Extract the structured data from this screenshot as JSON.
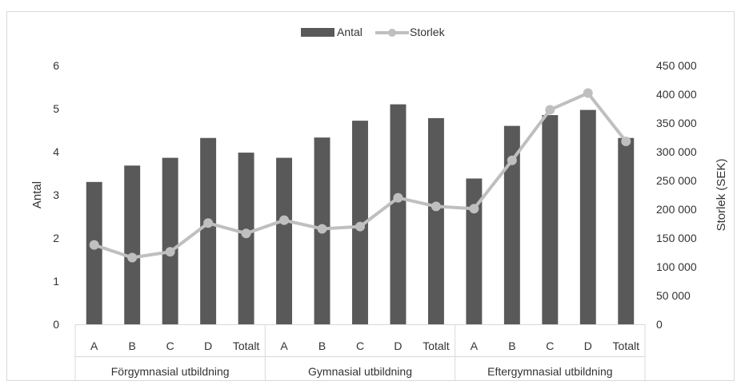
{
  "chart_data": {
    "type": "bar",
    "legend_position": "top",
    "grid": false,
    "groups": [
      {
        "label": "Förgymnasial utbildning",
        "categories": [
          "A",
          "B",
          "C",
          "D",
          "Totalt"
        ]
      },
      {
        "label": "Gymnasial utbildning",
        "categories": [
          "A",
          "B",
          "C",
          "D",
          "Totalt"
        ]
      },
      {
        "label": "Eftergymnasial utbildning",
        "categories": [
          "A",
          "B",
          "C",
          "D",
          "Totalt"
        ]
      }
    ],
    "y_left": {
      "label": "Antal",
      "min": 0,
      "max": 6,
      "ticks": [
        "0",
        "1",
        "2",
        "3",
        "4",
        "5",
        "6"
      ]
    },
    "y_right": {
      "label": "Storlek (SEK)",
      "min": 0,
      "max": 450000,
      "ticks": [
        "0",
        "50 000",
        "100 000",
        "150 000",
        "200 000",
        "250 000",
        "300 000",
        "350 000",
        "400 000",
        "450 000"
      ]
    },
    "series": [
      {
        "name": "Antal",
        "kind": "bar",
        "axis": "left",
        "color": "#595959",
        "values": [
          3.3,
          3.68,
          3.86,
          4.32,
          3.98,
          3.86,
          4.33,
          4.72,
          5.1,
          4.78,
          3.38,
          4.6,
          4.85,
          4.97,
          4.32
        ]
      },
      {
        "name": "Storlek",
        "kind": "line",
        "axis": "right",
        "color": "#bfbfbf",
        "values": [
          138000,
          116000,
          126000,
          176000,
          158000,
          181000,
          166000,
          170000,
          220000,
          205000,
          201000,
          285000,
          373000,
          402000,
          318000
        ]
      }
    ]
  }
}
